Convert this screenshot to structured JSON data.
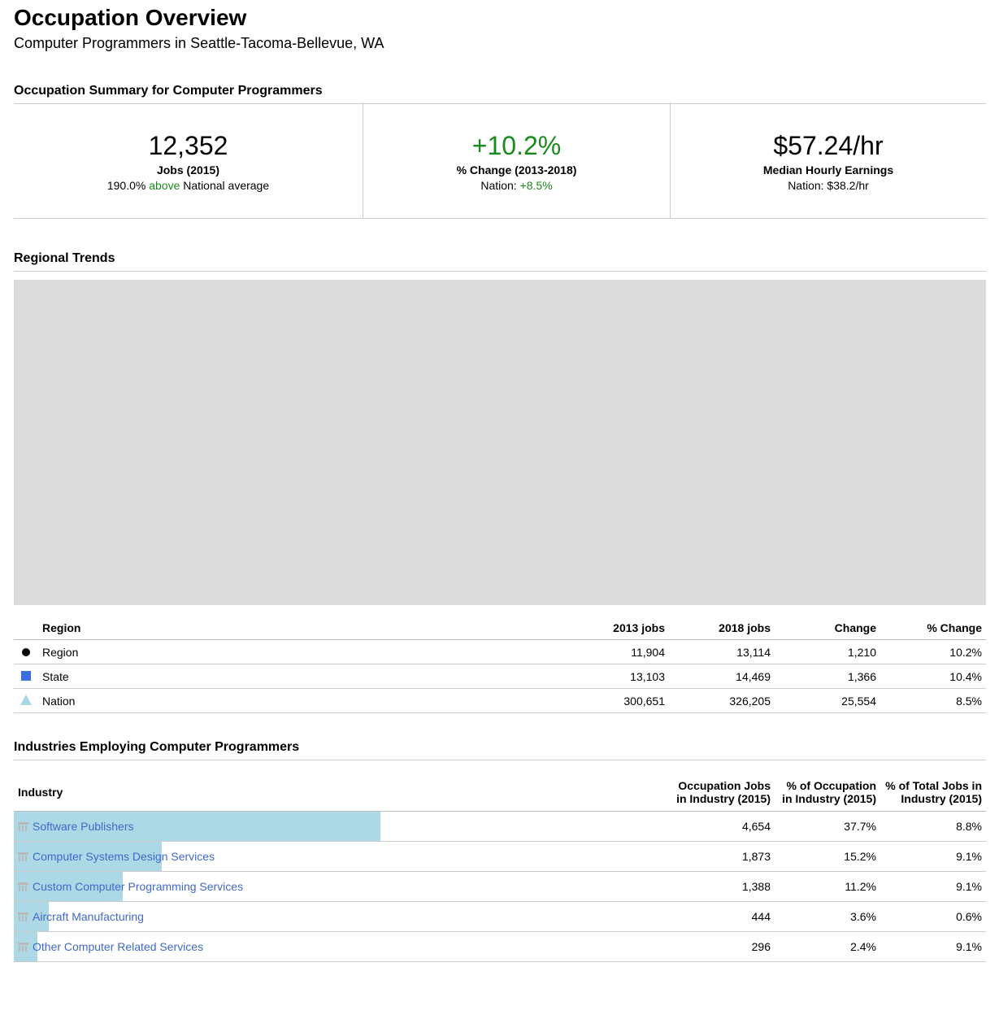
{
  "header": {
    "title": "Occupation Overview",
    "subtitle": "Computer Programmers in Seattle-Tacoma-Bellevue, WA"
  },
  "summary": {
    "section_title": "Occupation Summary for Computer Programmers",
    "jobs": {
      "value": "12,352",
      "label": "Jobs (2015)",
      "sub_prefix": "190.0% ",
      "sub_highlight": "above",
      "sub_suffix": " National average"
    },
    "change": {
      "value": "+10.2%",
      "label": "% Change (2013-2018)",
      "sub_prefix": "Nation: ",
      "sub_highlight": "+8.5%"
    },
    "earnings": {
      "value": "$57.24/hr",
      "label": "Median Hourly Earnings",
      "sub": "Nation: $38.2/hr"
    }
  },
  "trends": {
    "section_title": "Regional Trends",
    "columns": [
      "Region",
      "2013 jobs",
      "2018 jobs",
      "Change",
      "% Change"
    ],
    "rows": [
      {
        "marker": "circle-marker",
        "region": "Region",
        "jobs2013": "11,904",
        "jobs2018": "13,114",
        "change": "1,210",
        "pct": "10.2%"
      },
      {
        "marker": "square-marker",
        "region": "State",
        "jobs2013": "13,103",
        "jobs2018": "14,469",
        "change": "1,366",
        "pct": "10.4%"
      },
      {
        "marker": "triangle-marker",
        "region": "Nation",
        "jobs2013": "300,651",
        "jobs2018": "326,205",
        "change": "25,554",
        "pct": "8.5%"
      }
    ]
  },
  "industries": {
    "section_title": "Industries Employing Computer Programmers",
    "columns": [
      "Industry",
      "Occupation Jobs in Industry (2015)",
      "% of Occupation in Industry (2015)",
      "% of Total Jobs in Industry (2015)"
    ],
    "rows": [
      {
        "name": "Software Publishers",
        "jobs": "4,654",
        "pct_occ": "37.7%",
        "pct_total": "8.8%",
        "share": 0.377
      },
      {
        "name": "Computer Systems Design Services",
        "jobs": "1,873",
        "pct_occ": "15.2%",
        "pct_total": "9.1%",
        "share": 0.152
      },
      {
        "name": "Custom Computer Programming Services",
        "jobs": "1,388",
        "pct_occ": "11.2%",
        "pct_total": "9.1%",
        "share": 0.112
      },
      {
        "name": "Aircraft Manufacturing",
        "jobs": "444",
        "pct_occ": "3.6%",
        "pct_total": "0.6%",
        "share": 0.036
      },
      {
        "name": "Other Computer Related Services",
        "jobs": "296",
        "pct_occ": "2.4%",
        "pct_total": "9.1%",
        "share": 0.024
      }
    ]
  },
  "colors": {
    "accent_green": "#1a8a1a",
    "link": "#4169c9",
    "bar": "#add8e6",
    "state_marker": "#3b6fe0",
    "nation_marker": "#a9d6e5"
  },
  "icons": {
    "industry": "building-icon"
  }
}
